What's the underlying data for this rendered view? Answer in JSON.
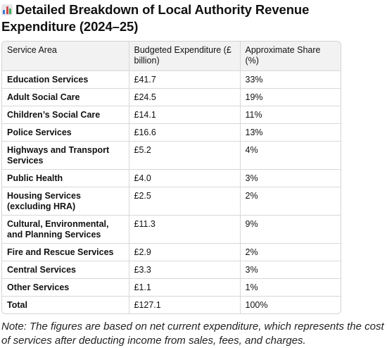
{
  "title": "Detailed Breakdown of Local Authority Revenue Expenditure (2024–25)",
  "title_icon": "bar-chart-icon",
  "table": {
    "headers": [
      "Service Area",
      "Budgeted Expenditure (£ billion)",
      "Approximate Share (%)"
    ],
    "rows": [
      {
        "area": "Education Services",
        "amount": "£41.7",
        "share": "33%"
      },
      {
        "area": "Adult Social Care",
        "amount": "£24.5",
        "share": "19%"
      },
      {
        "area": "Children’s Social Care",
        "amount": "£14.1",
        "share": "11%"
      },
      {
        "area": "Police Services",
        "amount": "£16.6",
        "share": "13%"
      },
      {
        "area": "Highways and Transport Services",
        "amount": "£5.2",
        "share": "4%"
      },
      {
        "area": "Public Health",
        "amount": "£4.0",
        "share": "3%"
      },
      {
        "area": "Housing Services (excluding HRA)",
        "amount": "£2.5",
        "share": "2%"
      },
      {
        "area": "Cultural, Environmental, and Planning Services",
        "amount": "£11.3",
        "share": "9%"
      },
      {
        "area": "Fire and Rescue Services",
        "amount": "£2.9",
        "share": "2%"
      },
      {
        "area": "Central Services",
        "amount": "£3.3",
        "share": "3%"
      },
      {
        "area": "Other Services",
        "amount": "£1.1",
        "share": "1%"
      },
      {
        "area": "Total",
        "amount": "£127.1",
        "share": "100%"
      }
    ]
  },
  "note": "Note: The figures are based on net current expenditure, which represents the cost of services after deducting income from sales, fees, and charges."
}
